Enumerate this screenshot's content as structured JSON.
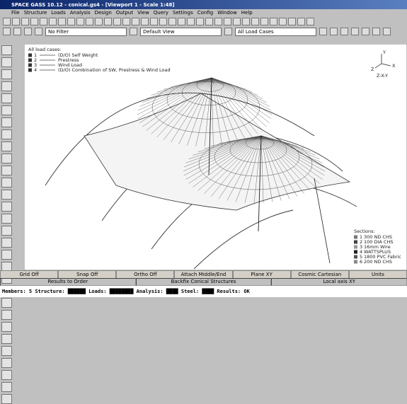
{
  "window_title": "SPACE GASS 10.12 - conical.gs4 - [Viewport 1 - Scale 1:48]",
  "menu": [
    "File",
    "Structure",
    "Loads",
    "Analysis",
    "Design",
    "Output",
    "View",
    "Query",
    "Settings",
    "Config",
    "Window",
    "Help"
  ],
  "dropdowns": [
    "No Filter",
    "Default View",
    "All Load Cases"
  ],
  "load_legend": {
    "title": "All load cases:",
    "items": [
      {
        "number": "1",
        "label": "(D/O) Self Weight"
      },
      {
        "number": "2",
        "label": "Prestress"
      },
      {
        "number": "3",
        "label": "Wind Load"
      },
      {
        "number": "4",
        "label": "(D/O) Combination of SW, Prestress & Wind Load"
      }
    ]
  },
  "axes": {
    "y": "Y",
    "x": "X",
    "z": "Z",
    "caption": "Z-X-Y"
  },
  "sections": {
    "title": "Sections:",
    "items": [
      {
        "number": "1",
        "label": "300 ND CHS"
      },
      {
        "number": "2",
        "label": "100 DIA CHS"
      },
      {
        "number": "3",
        "label": "16mm Wire"
      },
      {
        "number": "4",
        "label": "WATTSPLUS"
      },
      {
        "number": "5",
        "label": "1800 PVC Fabric"
      },
      {
        "number": "6",
        "label": "200 ND CHS"
      }
    ]
  },
  "buttons": [
    "Grid Off",
    "Snap Off",
    "Ortho Off",
    "Attach Middle/End",
    "Plane XY",
    "Cosmic Cartesian",
    "Units"
  ],
  "info_bar": [
    "Results to Order",
    "Backfix Conical Structures",
    "Local axis XY"
  ],
  "status": "Members: 5  Structure: ██████  Loads: ████████  Analysis: ████  Steel: ████  Results: OK"
}
